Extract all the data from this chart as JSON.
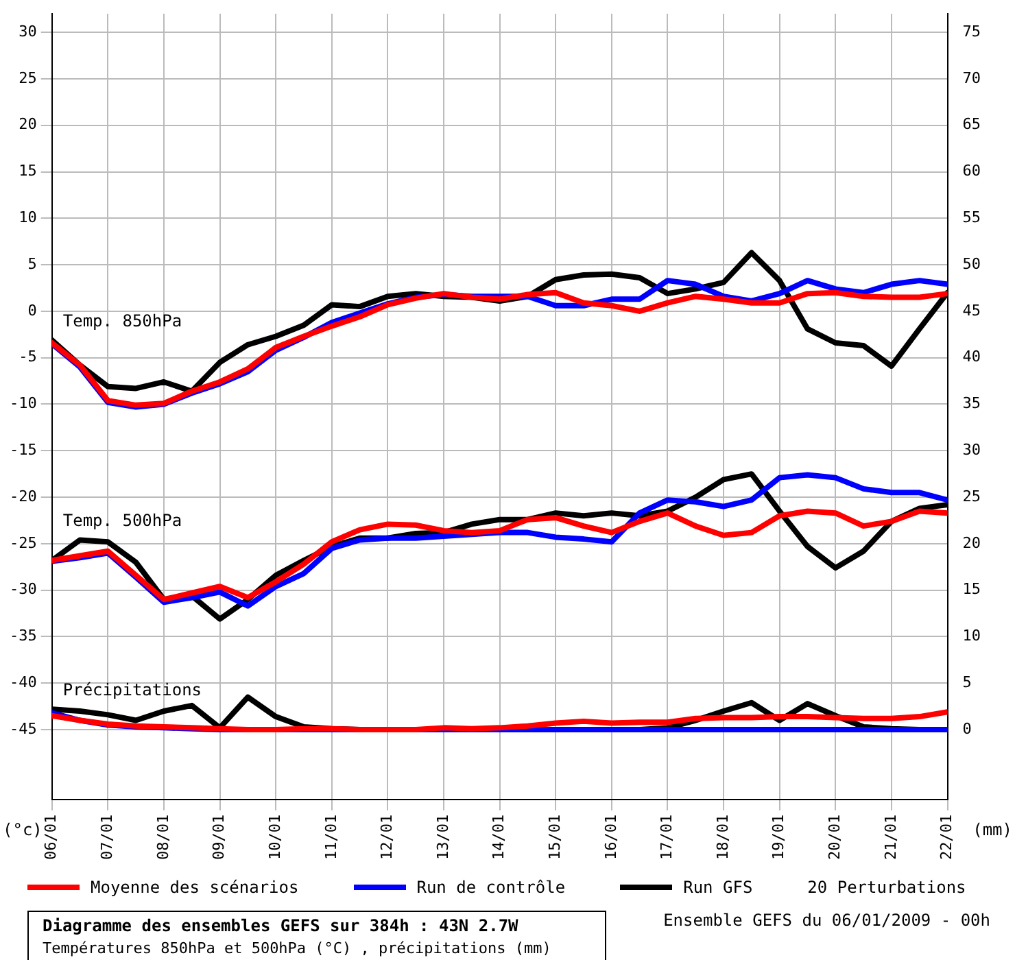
{
  "chart_data": {
    "type": "line",
    "title": "Diagramme des ensembles GEFS sur 384h : 43N 2.7W",
    "subtitle": "Températures 850hPa et 500hPa (°C) , précipitations (mm)",
    "ylabel": "(°c)",
    "y2label": "(mm)",
    "x": [
      "2009-01-06T00:00",
      "2009-01-06T12:00",
      "2009-01-07T00:00",
      "2009-01-07T12:00",
      "2009-01-08T00:00",
      "2009-01-08T12:00",
      "2009-01-09T00:00",
      "2009-01-09T12:00",
      "2009-01-10T00:00",
      "2009-01-10T12:00",
      "2009-01-11T00:00",
      "2009-01-11T12:00",
      "2009-01-12T00:00",
      "2009-01-12T12:00",
      "2009-01-13T00:00",
      "2009-01-13T12:00",
      "2009-01-14T00:00",
      "2009-01-14T12:00",
      "2009-01-15T00:00",
      "2009-01-15T12:00",
      "2009-01-16T00:00",
      "2009-01-16T12:00",
      "2009-01-17T00:00",
      "2009-01-17T12:00",
      "2009-01-18T00:00",
      "2009-01-18T12:00",
      "2009-01-19T00:00",
      "2009-01-19T12:00",
      "2009-01-20T00:00",
      "2009-01-20T12:00",
      "2009-01-21T00:00",
      "2009-01-21T12:00",
      "2009-01-22T00:00"
    ],
    "xlim": [
      "2009-01-06T00:00",
      "2009-01-22T00:00"
    ],
    "xticks": [
      {
        "value": "2009-01-06",
        "label": "06/01"
      },
      {
        "value": "2009-01-07",
        "label": "07/01"
      },
      {
        "value": "2009-01-08",
        "label": "08/01"
      },
      {
        "value": "2009-01-09",
        "label": "09/01"
      },
      {
        "value": "2009-01-10",
        "label": "10/01"
      },
      {
        "value": "2009-01-11",
        "label": "11/01"
      },
      {
        "value": "2009-01-12",
        "label": "12/01"
      },
      {
        "value": "2009-01-13",
        "label": "13/01"
      },
      {
        "value": "2009-01-14",
        "label": "14/01"
      },
      {
        "value": "2009-01-15",
        "label": "15/01"
      },
      {
        "value": "2009-01-16",
        "label": "16/01"
      },
      {
        "value": "2009-01-17",
        "label": "17/01"
      },
      {
        "value": "2009-01-18",
        "label": "18/01"
      },
      {
        "value": "2009-01-19",
        "label": "19/01"
      },
      {
        "value": "2009-01-20",
        "label": "20/01"
      },
      {
        "value": "2009-01-21",
        "label": "21/01"
      },
      {
        "value": "2009-01-22",
        "label": "22/01"
      }
    ],
    "ylim": [
      -52.5,
      32
    ],
    "yticks": [
      -45,
      -40,
      -35,
      -30,
      -25,
      -20,
      -15,
      -10,
      -5,
      0,
      5,
      10,
      15,
      20,
      25,
      30
    ],
    "y2lim": [
      -7.5,
      77
    ],
    "y2ticks": [
      0,
      5,
      10,
      15,
      20,
      25,
      30,
      35,
      40,
      45,
      50,
      55,
      60,
      65,
      70,
      75
    ],
    "grid": true,
    "legend": "bottom",
    "marker": "none",
    "line_style": "solid",
    "series": [
      {
        "name": "Moyenne des scénarios",
        "color": "#ff0000",
        "values": [
          -3.4,
          -5.8,
          -9.6,
          -10.1,
          -9.9,
          -8.6,
          -7.6,
          -6.2,
          -3.9,
          -2.7,
          -1.6,
          -0.6,
          0.7,
          1.4,
          1.9,
          1.5,
          1.3,
          1.8,
          2.0,
          0.9,
          0.6,
          0.0,
          0.9,
          1.6,
          1.3,
          0.9,
          0.9,
          1.9,
          2.0,
          1.6,
          1.5,
          1.5,
          1.9
        ]
      },
      {
        "name": "Run de contrôle",
        "color": "#0000ff",
        "values": [
          -3.5,
          -6,
          -9.8,
          -10.3,
          -10,
          -8.8,
          -7.8,
          -6.5,
          -4.2,
          -2.8,
          -1.2,
          -0.2,
          0.8,
          1.5,
          1.8,
          1.6,
          1.6,
          1.6,
          0.6,
          0.6,
          1.3,
          1.3,
          3.3,
          2.9,
          1.6,
          1.1,
          1.9,
          3.3,
          2.4,
          2.0,
          2.9,
          3.3,
          2.9
        ]
      },
      {
        "name": "Run GFS",
        "color": "#000000",
        "values": [
          -3.1,
          -5.8,
          -8.1,
          -8.3,
          -7.6,
          -8.6,
          -5.5,
          -3.6,
          -2.7,
          -1.5,
          0.7,
          0.5,
          1.6,
          1.9,
          1.6,
          1.5,
          1.1,
          1.6,
          3.4,
          3.9,
          4.0,
          3.6,
          1.9,
          2.4,
          3.1,
          6.3,
          3.3,
          -1.9,
          -3.4,
          -3.7,
          -5.9,
          -1.9,
          2.0
        ]
      },
      {
        "color": "#ff0000",
        "values": [
          -26.8,
          -26.3,
          -25.8,
          -28.4,
          -31.0,
          -30.3,
          -29.6,
          -30.8,
          -29.1,
          -27.2,
          -24.8,
          -23.5,
          -22.9,
          -23.0,
          -23.6,
          -23.8,
          -23.6,
          -22.4,
          -22.2,
          -23.1,
          -23.8,
          -22.6,
          -21.7,
          -23.1,
          -24.1,
          -23.8,
          -22.0,
          -21.5,
          -21.7,
          -23.1,
          -22.6,
          -21.5,
          -21.7
        ]
      },
      {
        "color": "#0000ff",
        "values": [
          -26.9,
          -26.5,
          -26.0,
          -28.6,
          -31.3,
          -30.8,
          -30.2,
          -31.7,
          -29.6,
          -28.2,
          -25.5,
          -24.6,
          -24.4,
          -24.4,
          -24.2,
          -24.0,
          -23.8,
          -23.8,
          -24.3,
          -24.5,
          -24.8,
          -21.7,
          -20.3,
          -20.5,
          -21.0,
          -20.3,
          -17.9,
          -17.6,
          -17.9,
          -19.1,
          -19.5,
          -19.5,
          -20.3
        ]
      },
      {
        "color": "#000000",
        "values": [
          -26.8,
          -24.6,
          -24.8,
          -27.0,
          -31.0,
          -30.6,
          -33.1,
          -31.0,
          -28.4,
          -26.8,
          -25.3,
          -24.4,
          -24.4,
          -23.9,
          -23.8,
          -22.9,
          -22.4,
          -22.4,
          -21.7,
          -22.0,
          -21.7,
          -22.0,
          -21.5,
          -20.0,
          -18.1,
          -17.5,
          -21.5,
          -25.3,
          -27.6,
          -25.8,
          -22.6,
          -21.2,
          -20.8
        ]
      },
      {
        "color": "#ff0000",
        "axis": "y2",
        "values": [
          1.5,
          1.0,
          0.6,
          0.4,
          0.3,
          0.2,
          0.1,
          0,
          0,
          0.1,
          0.1,
          0,
          0,
          0,
          0.2,
          0.1,
          0.2,
          0.4,
          0.7,
          0.9,
          0.7,
          0.8,
          0.8,
          1.2,
          1.3,
          1.3,
          1.4,
          1.4,
          1.3,
          1.2,
          1.2,
          1.4,
          1.9
        ]
      },
      {
        "color": "#0000ff",
        "axis": "y2",
        "values": [
          1.8,
          1.0,
          0.5,
          0.3,
          0.2,
          0.1,
          0,
          0,
          0,
          0,
          0,
          0,
          0,
          0,
          0,
          0,
          0,
          0,
          0,
          0,
          0,
          0,
          0,
          0,
          0,
          0,
          0,
          0,
          0,
          0,
          0,
          0,
          0
        ]
      },
      {
        "color": "#000000",
        "axis": "y2",
        "values": [
          2.2,
          2.0,
          1.6,
          1.0,
          2.0,
          2.6,
          0.2,
          3.5,
          1.4,
          0.3,
          0.1,
          0,
          0,
          0,
          0,
          0,
          0,
          0,
          0,
          0,
          0,
          0,
          0.2,
          1.0,
          2.0,
          2.9,
          1.0,
          2.8,
          1.5,
          0.3,
          0.1,
          0,
          0
        ]
      }
    ],
    "annotations": [
      "Temp. 850hPa",
      "Temp. 500hPa",
      "Précipitations",
      "20 Perturbations",
      "Ensemble GEFS du 06/01/2009 - 00h"
    ]
  }
}
